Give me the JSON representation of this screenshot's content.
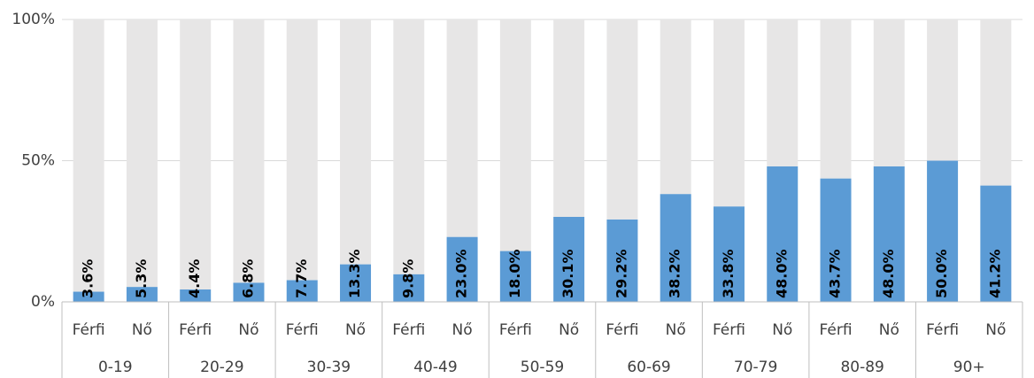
{
  "chart_data": {
    "type": "stacked_bar",
    "categories": [
      "Férfi",
      "Nő",
      "Férfi",
      "Nő",
      "Férfi",
      "Nő",
      "Férfi",
      "Nő",
      "Férfi",
      "Nő",
      "Férfi",
      "Nő",
      "Férfi",
      "Nő",
      "Férfi",
      "Nő",
      "Férfi",
      "Nő"
    ],
    "groups": [
      "0-19",
      "20-29",
      "30-39",
      "40-49",
      "50-59",
      "60-69",
      "70-79",
      "80-89",
      "90+"
    ],
    "series": [
      {
        "color": "#5b9bd5",
        "values": [
          3.6,
          5.3,
          4.4,
          6.8,
          7.7,
          13.3,
          9.8,
          23.0,
          18.0,
          30.1,
          29.2,
          38.2,
          33.8,
          48.0,
          43.7,
          48.0,
          50.0,
          41.2
        ],
        "value_labels": [
          "3.6%",
          "5.3%",
          "4.4%",
          "6.8%",
          "7.7%",
          "13.3%",
          "9.8%",
          "23.0%",
          "18.0%",
          "30.1%",
          "29.2%",
          "38.2%",
          "33.8%",
          "48.0%",
          "43.7%",
          "48.0%",
          "50.0%",
          "41.2%"
        ]
      },
      {
        "color": "#e7e6e6",
        "values": [
          96.4,
          94.7,
          95.6,
          93.2,
          92.3,
          86.7,
          90.2,
          77.0,
          82.0,
          69.9,
          70.8,
          61.8,
          66.2,
          52.0,
          56.3,
          52.0,
          50.0,
          58.8
        ]
      }
    ],
    "ylim": [
      0,
      100
    ],
    "yticks": [
      {
        "value": 0,
        "label": "0%"
      },
      {
        "value": 50,
        "label": "50%"
      },
      {
        "value": 100,
        "label": "100%"
      }
    ],
    "grid": true
  }
}
